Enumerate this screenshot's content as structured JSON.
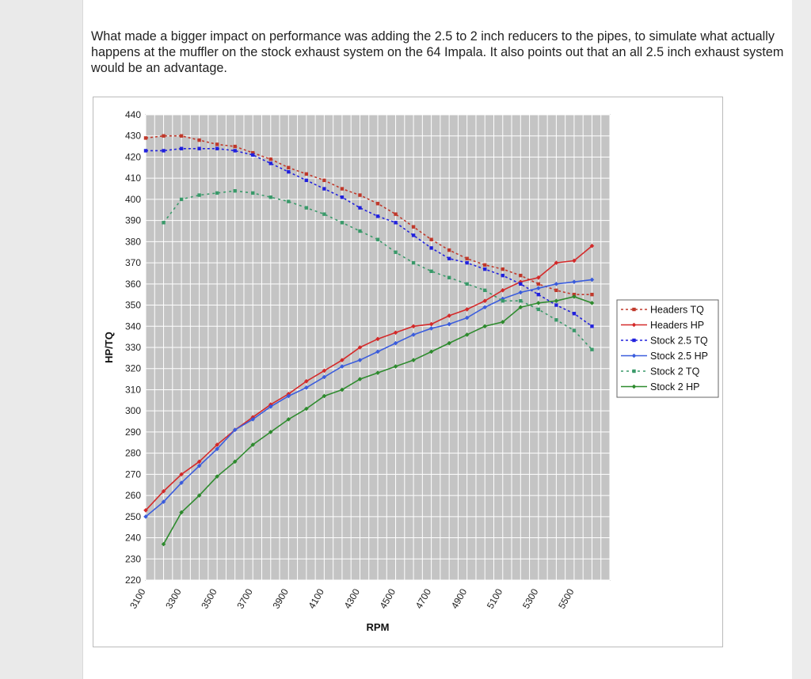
{
  "article": {
    "paragraph": "What made a bigger impact on performance was adding the 2.5 to 2 inch reducers to the pipes, to simulate what actually happens at the muffler on the stock exhaust system on the 64 Impala. It also points out that an all 2.5 inch exhaust system would be an advantage."
  },
  "chart_data": {
    "type": "line",
    "title": "",
    "xlabel": "RPM",
    "ylabel": "HP/TQ",
    "xlim": [
      3100,
      5700
    ],
    "ylim": [
      220,
      440
    ],
    "y_ticks": [
      "220",
      "230",
      "240",
      "250",
      "260",
      "270",
      "280",
      "290",
      "300",
      "310",
      "320",
      "330",
      "340",
      "350",
      "360",
      "370",
      "380",
      "390",
      "400",
      "410",
      "420",
      "430",
      "440"
    ],
    "x_ticks": [
      "3100",
      "3300",
      "3500",
      "3700",
      "3900",
      "4100",
      "4300",
      "4500",
      "4700",
      "4900",
      "5100",
      "5300",
      "5500"
    ],
    "grid": true,
    "legend_position": "right",
    "x": [
      3100,
      3200,
      3300,
      3400,
      3500,
      3600,
      3700,
      3800,
      3900,
      4000,
      4100,
      4200,
      4300,
      4400,
      4500,
      4600,
      4700,
      4800,
      4900,
      5000,
      5100,
      5200,
      5300,
      5400,
      5500,
      5600
    ],
    "series": [
      {
        "name": "Headers TQ",
        "color": "#c0392b",
        "dash": "3,3",
        "marker": "square",
        "values": [
          429,
          430,
          430,
          428,
          426,
          425,
          422,
          419,
          415,
          412,
          409,
          405,
          402,
          398,
          393,
          387,
          381,
          376,
          372,
          369,
          367,
          364,
          360,
          357,
          355,
          355
        ]
      },
      {
        "name": "Headers HP",
        "color": "#d42a2a",
        "dash": "",
        "marker": "diamond",
        "values": [
          253,
          262,
          270,
          276,
          284,
          291,
          297,
          303,
          308,
          314,
          319,
          324,
          330,
          334,
          337,
          340,
          341,
          345,
          348,
          352,
          357,
          361,
          363,
          370,
          371,
          378
        ]
      },
      {
        "name": "Stock 2.5 TQ",
        "color": "#2222dd",
        "dash": "3,3",
        "marker": "square",
        "values": [
          423,
          423,
          424,
          424,
          424,
          423,
          421,
          417,
          413,
          409,
          405,
          401,
          396,
          392,
          389,
          383,
          377,
          372,
          370,
          367,
          364,
          360,
          355,
          350,
          346,
          340
        ]
      },
      {
        "name": "Stock 2.5 HP",
        "color": "#3b5ddd",
        "dash": "",
        "marker": "diamond",
        "values": [
          250,
          257,
          266,
          274,
          282,
          291,
          296,
          302,
          307,
          311,
          316,
          321,
          324,
          328,
          332,
          336,
          339,
          341,
          344,
          349,
          353,
          356,
          358,
          360,
          361,
          362
        ]
      },
      {
        "name": "Stock 2 TQ",
        "color": "#3a9a6a",
        "dash": "3,4",
        "marker": "square",
        "values": [
          null,
          389,
          400,
          402,
          403,
          404,
          403,
          401,
          399,
          396,
          393,
          389,
          385,
          381,
          375,
          370,
          366,
          363,
          360,
          357,
          352,
          352,
          348,
          343,
          338,
          329
        ]
      },
      {
        "name": "Stock 2 HP",
        "color": "#2e8b2e",
        "dash": "",
        "marker": "diamond",
        "values": [
          null,
          237,
          252,
          260,
          269,
          276,
          284,
          290,
          296,
          301,
          307,
          310,
          315,
          318,
          321,
          324,
          328,
          332,
          336,
          340,
          342,
          349,
          351,
          352,
          354,
          351
        ]
      }
    ]
  }
}
